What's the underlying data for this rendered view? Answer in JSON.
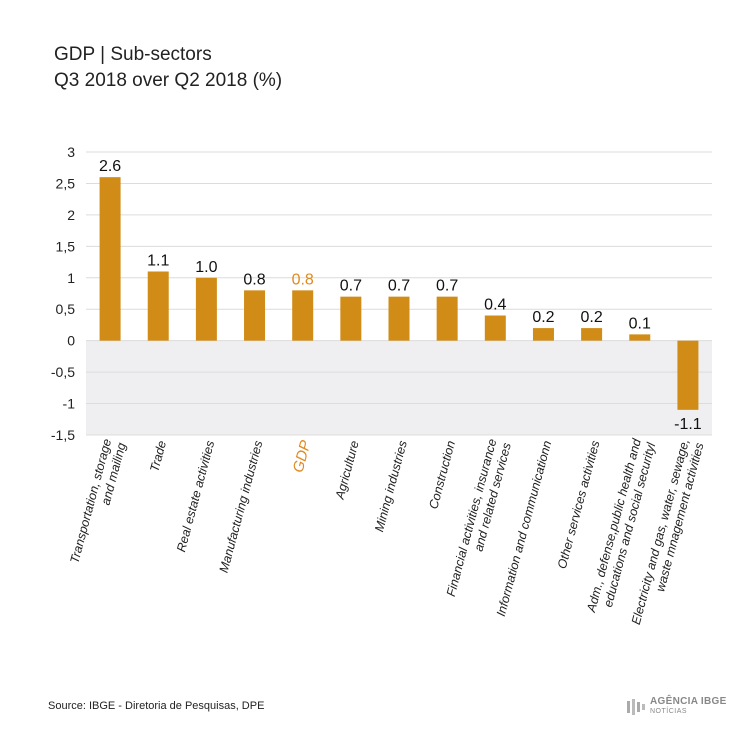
{
  "title": "GDP | Sub-sectors",
  "subtitle": "Q3 2018 over Q2 2018 (%)",
  "source": "Source: IBGE - Diretoria de Pesquisas, DPE",
  "logo": {
    "main": "AGÊNCIA IBGE",
    "sub": "NOTÍCIAS"
  },
  "colors": {
    "bar": "#d18c17",
    "highlight": "#e08a1e",
    "negative_band": "#efeff1",
    "grid": "#dcdcdc"
  },
  "chart_data": {
    "type": "bar",
    "categories": [
      "Transportation, storage|and mailing",
      "Trade",
      "Real estate activities",
      "Manufacturing industries",
      "GDP",
      "Agriculture",
      "Mining industries",
      "Construction",
      "Financial activities, insurance|and related services",
      "Information and communicationn",
      "Other services activities",
      "Adm., defense,public health and|educations and social securityl",
      "Electricity and gas, water, sewage,|waste mnagement activities"
    ],
    "values": [
      2.6,
      1.1,
      1.0,
      0.8,
      0.8,
      0.7,
      0.7,
      0.7,
      0.4,
      0.2,
      0.2,
      0.1,
      -1.1
    ],
    "value_labels": [
      "2.6",
      "1.1",
      "1.0",
      "0.8",
      "0.8",
      "0.7",
      "0.7",
      "0.7",
      "0.4",
      "0.2",
      "0.2",
      "0.1",
      "-1.1"
    ],
    "highlight_category": "GDP",
    "ylim": [
      -1.5,
      3
    ],
    "y_ticks": [
      "3",
      "2,5",
      "2",
      "1,5",
      "1",
      "0,5",
      "0",
      "-0,5",
      "-1",
      "-1,5"
    ],
    "y_tick_values": [
      3,
      2.5,
      2,
      1.5,
      1,
      0.5,
      0,
      -0.5,
      -1,
      -1.5
    ],
    "grid": true
  }
}
